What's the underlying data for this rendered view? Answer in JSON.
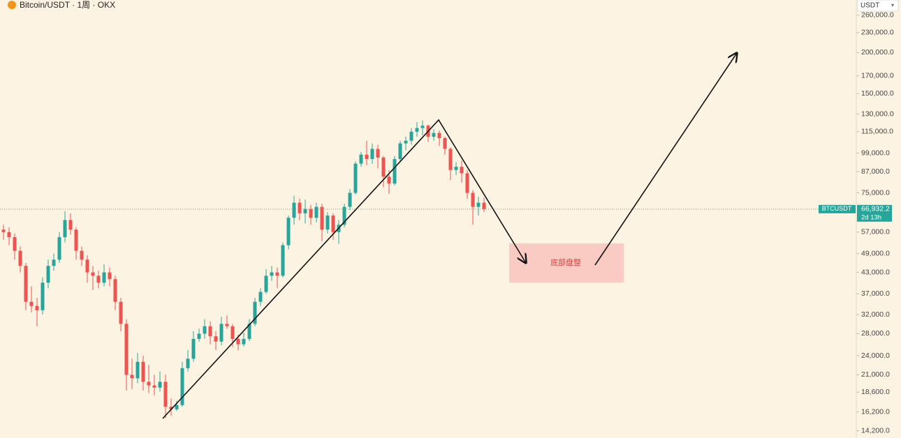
{
  "chart_data": {
    "type": "candlestick",
    "title": "Bitcoin/USDT · 1周 · OKX",
    "currency": "USDT",
    "annotation": "底部盘整",
    "log_scale": true,
    "up_color": "#26a69a",
    "down_color": "#ef5350",
    "open": [
      58000,
      57000,
      55000,
      50000,
      45000,
      35000,
      34000,
      33000,
      40000,
      45000,
      47000,
      55000,
      62000,
      58000,
      50000,
      47000,
      43000,
      42000,
      40000,
      43000,
      41000,
      35000,
      30000,
      21000,
      20500,
      23000,
      20000,
      19500,
      19200,
      20000,
      16800,
      16500,
      17000,
      22000,
      23500,
      27000,
      28000,
      29500,
      27500,
      26500,
      30000,
      29500,
      27000,
      26000,
      27000,
      30000,
      35000,
      37500,
      42000,
      43000,
      42000,
      52000,
      63000,
      70000,
      65000,
      67000,
      63000,
      68000,
      58000,
      64000,
      57000,
      60000,
      68000,
      75000,
      92000,
      98000,
      95000,
      102000,
      96000,
      84000,
      80000,
      95000,
      106000,
      108000,
      115000,
      118000,
      120000,
      111000,
      114000,
      110000,
      102000,
      88000,
      90000,
      86000,
      75000,
      68000,
      70000
    ],
    "high": [
      60000,
      59000,
      56500,
      51500,
      46000,
      39000,
      36000,
      41500,
      47000,
      49000,
      57000,
      66000,
      65000,
      59000,
      51500,
      48500,
      45000,
      43500,
      45500,
      44500,
      42000,
      36000,
      31000,
      23500,
      24500,
      24000,
      22500,
      21000,
      21500,
      21000,
      17800,
      17500,
      23000,
      25000,
      28500,
      29000,
      31000,
      30500,
      28500,
      31500,
      31800,
      30000,
      27800,
      28200,
      31000,
      36000,
      38500,
      44000,
      45000,
      44500,
      53000,
      64000,
      73500,
      72000,
      71500,
      69000,
      70000,
      69500,
      65500,
      65000,
      62000,
      69500,
      77000,
      93500,
      99800,
      108000,
      106000,
      105000,
      97000,
      88000,
      97000,
      108000,
      111000,
      118000,
      123000,
      124500,
      121000,
      117000,
      116000,
      111000,
      103000,
      93000,
      94000,
      88000,
      76500,
      73000,
      72500
    ],
    "low": [
      54000,
      52000,
      47000,
      43000,
      33000,
      32500,
      29500,
      32000,
      38500,
      43500,
      46000,
      53000,
      56000,
      47000,
      45000,
      40000,
      38000,
      38500,
      39000,
      39000,
      33000,
      28500,
      18800,
      19000,
      19800,
      18800,
      18500,
      18200,
      18700,
      15500,
      15800,
      16300,
      16800,
      21500,
      23000,
      26500,
      27000,
      26000,
      25000,
      25800,
      29000,
      25500,
      24900,
      25600,
      26600,
      29500,
      34000,
      37000,
      40500,
      38500,
      41500,
      50500,
      60000,
      62000,
      60500,
      60000,
      61000,
      53500,
      56500,
      54000,
      52500,
      59000,
      66500,
      74000,
      90000,
      91000,
      92000,
      89000,
      78000,
      74500,
      79000,
      93500,
      101000,
      105000,
      111000,
      112000,
      107000,
      108000,
      104000,
      98000,
      82000,
      85000,
      80500,
      72000,
      60000,
      64000,
      65500
    ],
    "close": [
      57000,
      55000,
      50000,
      45000,
      35000,
      34000,
      33000,
      40000,
      45000,
      47000,
      55000,
      62000,
      58000,
      50000,
      47000,
      43000,
      42000,
      40000,
      43000,
      41000,
      35000,
      30000,
      21000,
      20500,
      23000,
      20000,
      19500,
      19200,
      20000,
      16800,
      16500,
      17000,
      22000,
      23500,
      27000,
      28000,
      29500,
      27500,
      26500,
      30000,
      29500,
      27000,
      26000,
      27000,
      30000,
      35000,
      37500,
      42000,
      43000,
      42000,
      52000,
      63000,
      70000,
      65000,
      67000,
      63000,
      68000,
      58000,
      64000,
      57000,
      60000,
      68000,
      75000,
      92000,
      98000,
      95000,
      102000,
      96000,
      84000,
      80000,
      95000,
      106000,
      108000,
      115000,
      118000,
      120000,
      111000,
      114000,
      110000,
      102000,
      88000,
      90000,
      86000,
      75000,
      68000,
      70000,
      66932
    ],
    "ylim": [
      13500,
      289000
    ],
    "yticks": [
      {
        "value": 260000,
        "label": "260,000.0"
      },
      {
        "value": 230000,
        "label": "230,000.0"
      },
      {
        "value": 200000,
        "label": "200,000.0"
      },
      {
        "value": 170000,
        "label": "170,000.0"
      },
      {
        "value": 150000,
        "label": "150,000.0"
      },
      {
        "value": 130000,
        "label": "130,000.0"
      },
      {
        "value": 115000,
        "label": "115,000.0"
      },
      {
        "value": 99000,
        "label": "99,000.0"
      },
      {
        "value": 87000,
        "label": "87,000.0"
      },
      {
        "value": 75000,
        "label": "75,000.0"
      },
      {
        "value": 57000,
        "label": "57,000.0"
      },
      {
        "value": 49000,
        "label": "49,000.0"
      },
      {
        "value": 43000,
        "label": "43,000.0"
      },
      {
        "value": 37000,
        "label": "37,000.0"
      },
      {
        "value": 32000,
        "label": "32,000.0"
      },
      {
        "value": 28000,
        "label": "28,000.0"
      },
      {
        "value": 24000,
        "label": "24,000.0"
      },
      {
        "value": 21000,
        "label": "21,000.0"
      },
      {
        "value": 18600,
        "label": "18,600.0"
      },
      {
        "value": 16200,
        "label": "16,200.0"
      },
      {
        "value": 14200,
        "label": "14,200.0"
      }
    ],
    "last_price": {
      "symbol": "BTCUSDT",
      "value": 66932.2,
      "label": "66,932.2",
      "countdown": "2d 13h"
    }
  }
}
